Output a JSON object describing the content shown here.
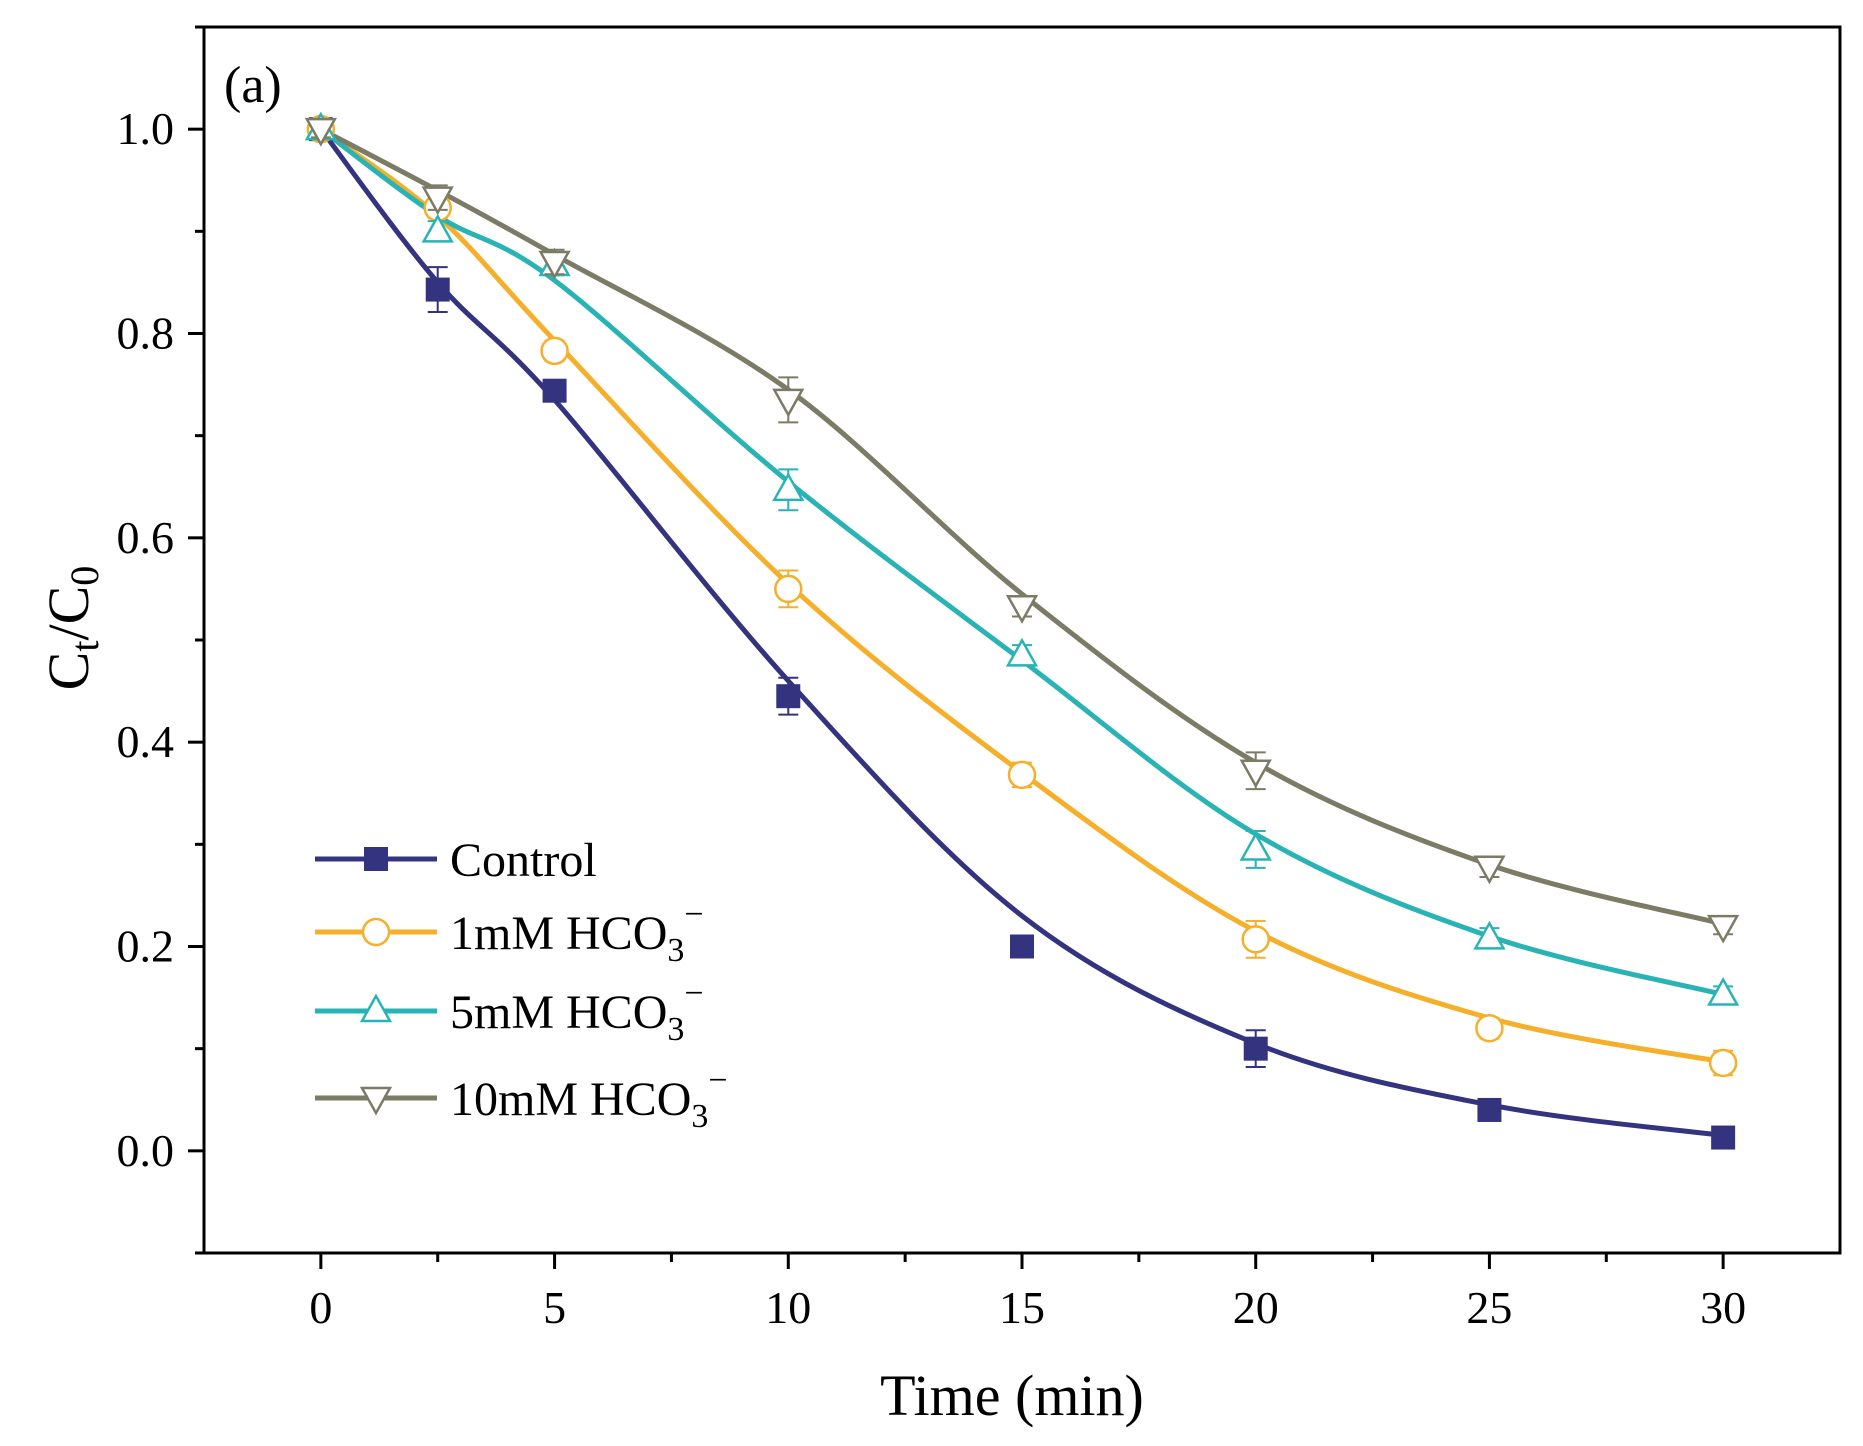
{
  "chart_data": {
    "type": "line",
    "panel_label": "(a)",
    "xlabel": "Time (min)",
    "ylabel": {
      "base": "C",
      "sub1": "t",
      "slash": "/C",
      "sub2": "0"
    },
    "xlim": [
      -2.5,
      32.5
    ],
    "ylim": [
      -0.1,
      1.1
    ],
    "xticks": [
      0,
      5,
      10,
      15,
      20,
      25,
      30
    ],
    "xtick_labels": [
      "0",
      "5",
      "10",
      "15",
      "20",
      "25",
      "30"
    ],
    "yticks": [
      0.0,
      0.2,
      0.4,
      0.6,
      0.8,
      1.0
    ],
    "ytick_labels": [
      "0.0",
      "0.2",
      "0.4",
      "0.6",
      "0.8",
      "1.0"
    ],
    "x": [
      0,
      2.5,
      5,
      10,
      15,
      20,
      25,
      30
    ],
    "legend_position": "lower-left",
    "series": [
      {
        "name": "Control",
        "legend": {
          "text": "Control",
          "sub": "",
          "sup": ""
        },
        "color": "#34337F",
        "marker": "square-filled",
        "values": [
          1.0,
          0.843,
          0.744,
          0.445,
          0.2,
          0.1,
          0.04,
          0.013
        ],
        "errors": [
          0.008,
          0.022,
          0.008,
          0.018,
          0.006,
          0.018,
          0.006,
          0.005
        ],
        "fit": [
          1.0,
          0.85,
          0.735,
          0.46,
          0.23,
          0.105,
          0.045,
          0.015
        ]
      },
      {
        "name": "1mM HCO3−",
        "legend": {
          "text": "1mM HCO",
          "sub": "3",
          "sup": "−"
        },
        "color": "#F5AF2A",
        "marker": "circle-open",
        "values": [
          1.0,
          0.923,
          0.783,
          0.55,
          0.368,
          0.207,
          0.12,
          0.086
        ],
        "errors": [
          0.008,
          0.01,
          0.01,
          0.018,
          0.012,
          0.018,
          0.01,
          0.012
        ],
        "fit": [
          1.0,
          0.915,
          0.793,
          0.555,
          0.37,
          0.215,
          0.13,
          0.087
        ]
      },
      {
        "name": "5mM HCO3−",
        "legend": {
          "text": "5mM HCO",
          "sub": "3",
          "sup": "−"
        },
        "color": "#29B3B5",
        "marker": "triangle-up-open",
        "values": [
          1.0,
          0.9,
          0.867,
          0.647,
          0.485,
          0.295,
          0.208,
          0.153
        ],
        "errors": [
          0.008,
          0.01,
          0.01,
          0.02,
          0.01,
          0.018,
          0.01,
          0.008
        ],
        "fit": [
          1.0,
          0.915,
          0.852,
          0.655,
          0.48,
          0.31,
          0.21,
          0.153
        ]
      },
      {
        "name": "10mM HCO3−",
        "legend": {
          "text": "10mM HCO",
          "sub": "3",
          "sup": "−"
        },
        "color": "#7C7B65",
        "marker": "triangle-down-open",
        "values": [
          1.0,
          0.933,
          0.87,
          0.735,
          0.533,
          0.372,
          0.278,
          0.22
        ],
        "errors": [
          0.008,
          0.012,
          0.012,
          0.022,
          0.01,
          0.018,
          0.01,
          0.008
        ],
        "fit": [
          1.0,
          0.94,
          0.877,
          0.745,
          0.545,
          0.38,
          0.28,
          0.222
        ]
      }
    ]
  }
}
